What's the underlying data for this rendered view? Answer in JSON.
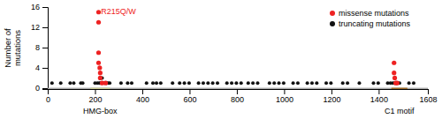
{
  "chart_data": {
    "type": "scatter",
    "ylabel": "Number of\nmutations",
    "xlim": [
      0,
      1608
    ],
    "ylim": [
      -0.18,
      16
    ],
    "xticks": [
      0,
      200,
      400,
      600,
      800,
      1000,
      1200,
      1400,
      1608
    ],
    "yticks": [
      0,
      4,
      8,
      12,
      16
    ],
    "legend": "upper right",
    "annotations": [
      {
        "text": "R215Q/W",
        "x": 218,
        "y": 15.8,
        "color": "#ee2222"
      }
    ],
    "protein_bar": {
      "ymin": -0.17,
      "ymax": 0.0,
      "color": "#cccccc"
    },
    "domains": [
      {
        "name": "HMG-box",
        "start": 182,
        "width": 80,
        "color": "#ffffbb"
      },
      {
        "name": "C1 motif",
        "start": 1455,
        "width": 65,
        "color": "#cc8833"
      }
    ],
    "series": [
      {
        "name": "missense mutations",
        "color": "#ee2222",
        "marker": "circle",
        "x": [
          215,
          215,
          215,
          215,
          220,
          222,
          222,
          230,
          245,
          1465,
          1465,
          1468,
          1472,
          1478
        ],
        "values": [
          15,
          13,
          7,
          5,
          4,
          3,
          2,
          1,
          1,
          5,
          3,
          2,
          1,
          1
        ]
      },
      {
        "name": "truncating mutations",
        "color": "#111111",
        "marker": "circle",
        "x": [
          18,
          55,
          95,
          110,
          140,
          148,
          200,
          210,
          218,
          224,
          230,
          240,
          248,
          255,
          262,
          310,
          338,
          355,
          418,
          445,
          460,
          478,
          528,
          558,
          578,
          598,
          638,
          658,
          678,
          698,
          718,
          758,
          778,
          798,
          818,
          848,
          868,
          888,
          938,
          958,
          978,
          998,
          1038,
          1058,
          1098,
          1118,
          1138,
          1178,
          1198,
          1248,
          1268,
          1318,
          1378,
          1398,
          1438,
          1450,
          1460,
          1468,
          1478,
          1488,
          1528,
          1548
        ],
        "values": [
          1,
          1,
          1,
          1,
          1,
          1,
          1,
          1,
          1,
          1,
          2,
          1,
          1,
          1,
          1,
          1,
          1,
          1,
          1,
          1,
          1,
          1,
          1,
          1,
          1,
          1,
          1,
          1,
          1,
          1,
          1,
          1,
          1,
          1,
          1,
          1,
          1,
          1,
          1,
          1,
          1,
          1,
          1,
          1,
          1,
          1,
          1,
          1,
          1,
          1,
          1,
          1,
          1,
          1,
          1,
          1,
          1,
          1,
          1,
          1,
          1,
          1
        ]
      }
    ]
  }
}
